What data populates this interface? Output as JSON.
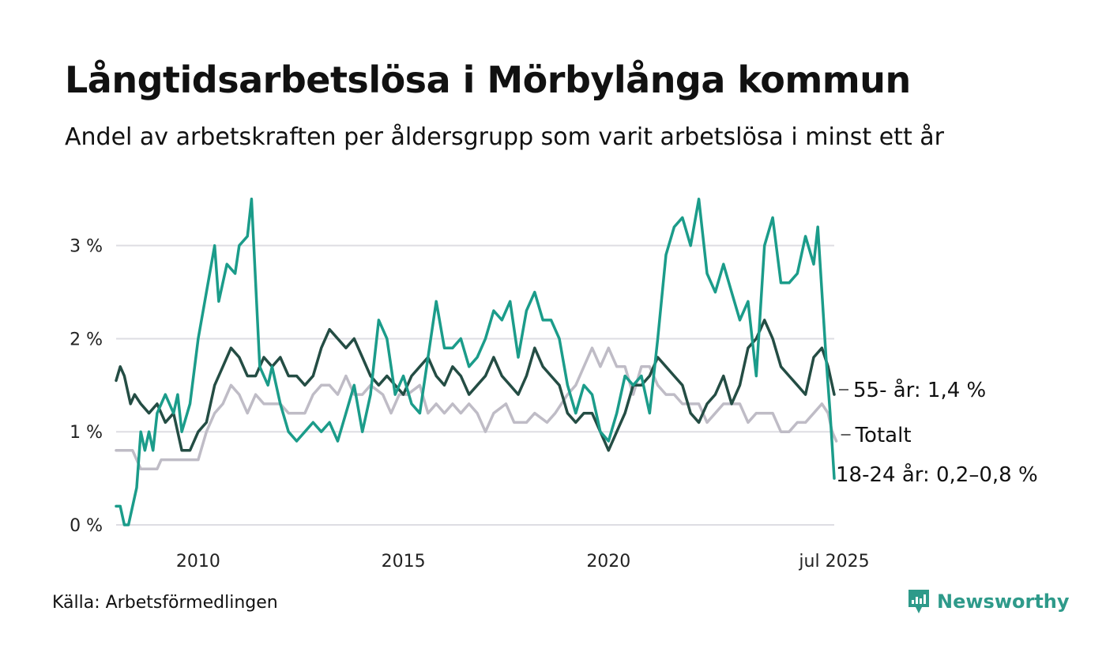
{
  "title": "Långtidsarbetslösa i Mörbylånga kommun",
  "subtitle": "Andel av arbetskraften per åldersgrupp som varit arbetslösa i minst ett år",
  "source": "Källa: Arbetsförmedlingen",
  "brand": {
    "name": "Newsworthy",
    "icon": "newsworthy-logo-icon",
    "color": "#2e9a8a"
  },
  "chart_data": {
    "type": "line",
    "x_range": [
      2008.0,
      2025.5
    ],
    "ylim": [
      0,
      3.6
    ],
    "y_ticks": [
      0,
      1,
      2,
      3
    ],
    "y_tick_labels": [
      "0 %",
      "1 %",
      "2 %",
      "3 %"
    ],
    "x_ticks": [
      2010,
      2015,
      2020,
      2025.5
    ],
    "x_tick_labels": [
      "2010",
      "2015",
      "2020",
      "jul 2025"
    ],
    "grid": true,
    "series": [
      {
        "name": "Totalt",
        "end_label": "Totalt",
        "color": "#bfbcc6",
        "points": [
          [
            2008.0,
            0.8
          ],
          [
            2008.4,
            0.8
          ],
          [
            2008.6,
            0.6
          ],
          [
            2009.0,
            0.6
          ],
          [
            2009.1,
            0.7
          ],
          [
            2009.6,
            0.7
          ],
          [
            2010.0,
            0.7
          ],
          [
            2010.2,
            1.0
          ],
          [
            2010.4,
            1.2
          ],
          [
            2010.6,
            1.3
          ],
          [
            2010.8,
            1.5
          ],
          [
            2011.0,
            1.4
          ],
          [
            2011.2,
            1.2
          ],
          [
            2011.4,
            1.4
          ],
          [
            2011.6,
            1.3
          ],
          [
            2012.0,
            1.3
          ],
          [
            2012.2,
            1.2
          ],
          [
            2012.6,
            1.2
          ],
          [
            2012.8,
            1.4
          ],
          [
            2013.0,
            1.5
          ],
          [
            2013.2,
            1.5
          ],
          [
            2013.4,
            1.4
          ],
          [
            2013.6,
            1.6
          ],
          [
            2013.8,
            1.4
          ],
          [
            2014.0,
            1.4
          ],
          [
            2014.2,
            1.5
          ],
          [
            2014.5,
            1.4
          ],
          [
            2014.7,
            1.2
          ],
          [
            2014.9,
            1.4
          ],
          [
            2015.1,
            1.4
          ],
          [
            2015.4,
            1.5
          ],
          [
            2015.6,
            1.2
          ],
          [
            2015.8,
            1.3
          ],
          [
            2016.0,
            1.2
          ],
          [
            2016.2,
            1.3
          ],
          [
            2016.4,
            1.2
          ],
          [
            2016.6,
            1.3
          ],
          [
            2016.8,
            1.2
          ],
          [
            2017.0,
            1.0
          ],
          [
            2017.2,
            1.2
          ],
          [
            2017.5,
            1.3
          ],
          [
            2017.7,
            1.1
          ],
          [
            2018.0,
            1.1
          ],
          [
            2018.2,
            1.2
          ],
          [
            2018.5,
            1.1
          ],
          [
            2018.7,
            1.2
          ],
          [
            2019.0,
            1.4
          ],
          [
            2019.2,
            1.5
          ],
          [
            2019.4,
            1.7
          ],
          [
            2019.6,
            1.9
          ],
          [
            2019.8,
            1.7
          ],
          [
            2020.0,
            1.9
          ],
          [
            2020.2,
            1.7
          ],
          [
            2020.4,
            1.7
          ],
          [
            2020.6,
            1.4
          ],
          [
            2020.8,
            1.7
          ],
          [
            2021.0,
            1.7
          ],
          [
            2021.2,
            1.5
          ],
          [
            2021.4,
            1.4
          ],
          [
            2021.6,
            1.4
          ],
          [
            2021.8,
            1.3
          ],
          [
            2022.0,
            1.3
          ],
          [
            2022.2,
            1.3
          ],
          [
            2022.4,
            1.1
          ],
          [
            2022.6,
            1.2
          ],
          [
            2022.8,
            1.3
          ],
          [
            2023.0,
            1.3
          ],
          [
            2023.2,
            1.3
          ],
          [
            2023.4,
            1.1
          ],
          [
            2023.6,
            1.2
          ],
          [
            2023.8,
            1.2
          ],
          [
            2024.0,
            1.2
          ],
          [
            2024.2,
            1.0
          ],
          [
            2024.4,
            1.0
          ],
          [
            2024.6,
            1.1
          ],
          [
            2024.8,
            1.1
          ],
          [
            2025.0,
            1.2
          ],
          [
            2025.2,
            1.3
          ],
          [
            2025.35,
            1.2
          ],
          [
            2025.45,
            1.0
          ],
          [
            2025.55,
            0.9
          ]
        ]
      },
      {
        "name": "55- år",
        "end_label": "55- år: 1,4 %",
        "color": "#244d44",
        "points": [
          [
            2008.0,
            1.55
          ],
          [
            2008.1,
            1.7
          ],
          [
            2008.2,
            1.6
          ],
          [
            2008.35,
            1.3
          ],
          [
            2008.45,
            1.4
          ],
          [
            2008.6,
            1.3
          ],
          [
            2008.8,
            1.2
          ],
          [
            2009.0,
            1.3
          ],
          [
            2009.2,
            1.1
          ],
          [
            2009.4,
            1.2
          ],
          [
            2009.6,
            0.8
          ],
          [
            2009.8,
            0.8
          ],
          [
            2010.0,
            1.0
          ],
          [
            2010.2,
            1.1
          ],
          [
            2010.4,
            1.5
          ],
          [
            2010.6,
            1.7
          ],
          [
            2010.8,
            1.9
          ],
          [
            2011.0,
            1.8
          ],
          [
            2011.2,
            1.6
          ],
          [
            2011.4,
            1.6
          ],
          [
            2011.6,
            1.8
          ],
          [
            2011.8,
            1.7
          ],
          [
            2012.0,
            1.8
          ],
          [
            2012.2,
            1.6
          ],
          [
            2012.4,
            1.6
          ],
          [
            2012.6,
            1.5
          ],
          [
            2012.8,
            1.6
          ],
          [
            2013.0,
            1.9
          ],
          [
            2013.2,
            2.1
          ],
          [
            2013.4,
            2.0
          ],
          [
            2013.6,
            1.9
          ],
          [
            2013.8,
            2.0
          ],
          [
            2014.0,
            1.8
          ],
          [
            2014.2,
            1.6
          ],
          [
            2014.4,
            1.5
          ],
          [
            2014.6,
            1.6
          ],
          [
            2014.8,
            1.5
          ],
          [
            2015.0,
            1.4
          ],
          [
            2015.2,
            1.6
          ],
          [
            2015.4,
            1.7
          ],
          [
            2015.6,
            1.8
          ],
          [
            2015.8,
            1.6
          ],
          [
            2016.0,
            1.5
          ],
          [
            2016.2,
            1.7
          ],
          [
            2016.4,
            1.6
          ],
          [
            2016.6,
            1.4
          ],
          [
            2016.8,
            1.5
          ],
          [
            2017.0,
            1.6
          ],
          [
            2017.2,
            1.8
          ],
          [
            2017.4,
            1.6
          ],
          [
            2017.6,
            1.5
          ],
          [
            2017.8,
            1.4
          ],
          [
            2018.0,
            1.6
          ],
          [
            2018.2,
            1.9
          ],
          [
            2018.4,
            1.7
          ],
          [
            2018.6,
            1.6
          ],
          [
            2018.8,
            1.5
          ],
          [
            2019.0,
            1.2
          ],
          [
            2019.2,
            1.1
          ],
          [
            2019.4,
            1.2
          ],
          [
            2019.6,
            1.2
          ],
          [
            2019.8,
            1.0
          ],
          [
            2020.0,
            0.8
          ],
          [
            2020.2,
            1.0
          ],
          [
            2020.4,
            1.2
          ],
          [
            2020.6,
            1.5
          ],
          [
            2020.8,
            1.5
          ],
          [
            2021.0,
            1.6
          ],
          [
            2021.2,
            1.8
          ],
          [
            2021.4,
            1.7
          ],
          [
            2021.6,
            1.6
          ],
          [
            2021.8,
            1.5
          ],
          [
            2022.0,
            1.2
          ],
          [
            2022.2,
            1.1
          ],
          [
            2022.4,
            1.3
          ],
          [
            2022.6,
            1.4
          ],
          [
            2022.8,
            1.6
          ],
          [
            2023.0,
            1.3
          ],
          [
            2023.2,
            1.5
          ],
          [
            2023.4,
            1.9
          ],
          [
            2023.6,
            2.0
          ],
          [
            2023.8,
            2.2
          ],
          [
            2024.0,
            2.0
          ],
          [
            2024.2,
            1.7
          ],
          [
            2024.4,
            1.6
          ],
          [
            2024.6,
            1.5
          ],
          [
            2024.8,
            1.4
          ],
          [
            2025.0,
            1.8
          ],
          [
            2025.2,
            1.9
          ],
          [
            2025.35,
            1.7
          ],
          [
            2025.5,
            1.4
          ]
        ]
      },
      {
        "name": "18-24 år",
        "end_label": "18-24 år: 0,2–0,8 %",
        "color": "#1b9c8a",
        "points": [
          [
            2008.0,
            0.2
          ],
          [
            2008.1,
            0.2
          ],
          [
            2008.2,
            0.0
          ],
          [
            2008.3,
            0.0
          ],
          [
            2008.5,
            0.4
          ],
          [
            2008.6,
            1.0
          ],
          [
            2008.7,
            0.8
          ],
          [
            2008.8,
            1.0
          ],
          [
            2008.9,
            0.8
          ],
          [
            2009.0,
            1.2
          ],
          [
            2009.2,
            1.4
          ],
          [
            2009.4,
            1.2
          ],
          [
            2009.5,
            1.4
          ],
          [
            2009.6,
            1.0
          ],
          [
            2009.8,
            1.3
          ],
          [
            2010.0,
            2.0
          ],
          [
            2010.2,
            2.5
          ],
          [
            2010.4,
            3.0
          ],
          [
            2010.5,
            2.4
          ],
          [
            2010.7,
            2.8
          ],
          [
            2010.9,
            2.7
          ],
          [
            2011.0,
            3.0
          ],
          [
            2011.2,
            3.1
          ],
          [
            2011.3,
            3.5
          ],
          [
            2011.5,
            1.7
          ],
          [
            2011.7,
            1.5
          ],
          [
            2011.8,
            1.7
          ],
          [
            2012.0,
            1.3
          ],
          [
            2012.2,
            1.0
          ],
          [
            2012.4,
            0.9
          ],
          [
            2012.6,
            1.0
          ],
          [
            2012.8,
            1.1
          ],
          [
            2013.0,
            1.0
          ],
          [
            2013.2,
            1.1
          ],
          [
            2013.4,
            0.9
          ],
          [
            2013.6,
            1.2
          ],
          [
            2013.8,
            1.5
          ],
          [
            2014.0,
            1.0
          ],
          [
            2014.2,
            1.4
          ],
          [
            2014.4,
            2.2
          ],
          [
            2014.6,
            2.0
          ],
          [
            2014.8,
            1.4
          ],
          [
            2015.0,
            1.6
          ],
          [
            2015.2,
            1.3
          ],
          [
            2015.4,
            1.2
          ],
          [
            2015.6,
            1.8
          ],
          [
            2015.8,
            2.4
          ],
          [
            2016.0,
            1.9
          ],
          [
            2016.2,
            1.9
          ],
          [
            2016.4,
            2.0
          ],
          [
            2016.6,
            1.7
          ],
          [
            2016.8,
            1.8
          ],
          [
            2017.0,
            2.0
          ],
          [
            2017.2,
            2.3
          ],
          [
            2017.4,
            2.2
          ],
          [
            2017.6,
            2.4
          ],
          [
            2017.8,
            1.8
          ],
          [
            2018.0,
            2.3
          ],
          [
            2018.2,
            2.5
          ],
          [
            2018.4,
            2.2
          ],
          [
            2018.6,
            2.2
          ],
          [
            2018.8,
            2.0
          ],
          [
            2019.0,
            1.5
          ],
          [
            2019.2,
            1.2
          ],
          [
            2019.4,
            1.5
          ],
          [
            2019.6,
            1.4
          ],
          [
            2019.8,
            1.0
          ],
          [
            2020.0,
            0.9
          ],
          [
            2020.2,
            1.2
          ],
          [
            2020.4,
            1.6
          ],
          [
            2020.6,
            1.5
          ],
          [
            2020.8,
            1.6
          ],
          [
            2021.0,
            1.2
          ],
          [
            2021.2,
            2.0
          ],
          [
            2021.4,
            2.9
          ],
          [
            2021.6,
            3.2
          ],
          [
            2021.8,
            3.3
          ],
          [
            2022.0,
            3.0
          ],
          [
            2022.2,
            3.5
          ],
          [
            2022.4,
            2.7
          ],
          [
            2022.6,
            2.5
          ],
          [
            2022.8,
            2.8
          ],
          [
            2023.0,
            2.5
          ],
          [
            2023.2,
            2.2
          ],
          [
            2023.4,
            2.4
          ],
          [
            2023.6,
            1.6
          ],
          [
            2023.8,
            3.0
          ],
          [
            2024.0,
            3.3
          ],
          [
            2024.2,
            2.6
          ],
          [
            2024.4,
            2.6
          ],
          [
            2024.6,
            2.7
          ],
          [
            2024.8,
            3.1
          ],
          [
            2025.0,
            2.8
          ],
          [
            2025.1,
            3.2
          ],
          [
            2025.2,
            2.5
          ],
          [
            2025.3,
            1.8
          ],
          [
            2025.4,
            1.2
          ],
          [
            2025.5,
            0.5
          ]
        ]
      }
    ]
  }
}
